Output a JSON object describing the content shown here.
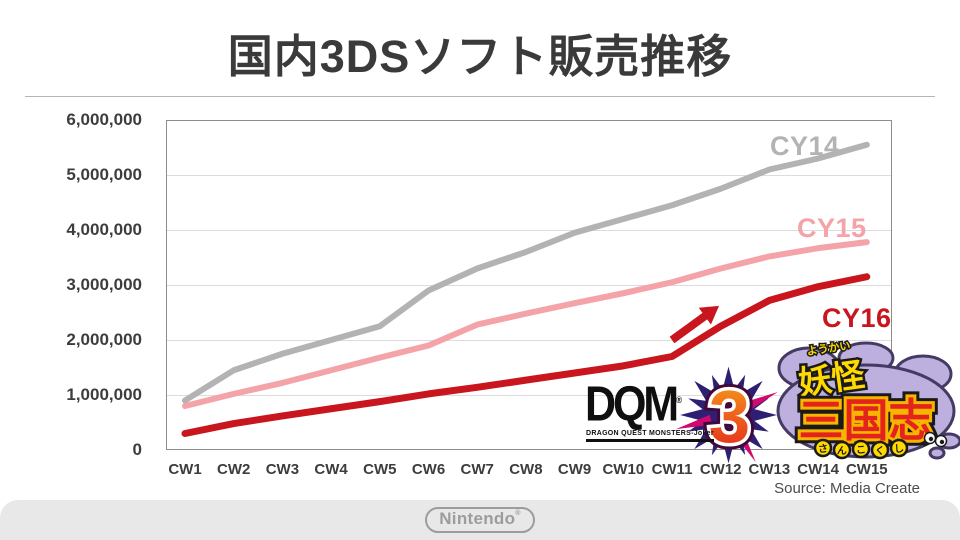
{
  "page": {
    "title": "国内3DSソフト販売推移",
    "source": "Source: Media Create"
  },
  "chart_data": {
    "type": "line",
    "title": "国内3DSソフト販売推移",
    "x_categories": [
      "CW1",
      "CW2",
      "CW3",
      "CW4",
      "CW5",
      "CW6",
      "CW7",
      "CW8",
      "CW9",
      "CW10",
      "CW11",
      "CW12",
      "CW13",
      "CW14",
      "CW15"
    ],
    "ylim": [
      0,
      6000000
    ],
    "grid": "horizontal",
    "legend_position": "inline-right-of-lines",
    "axis_color": "#8c8c8c",
    "grid_color": "#dcdcdc",
    "y_ticks": [
      {
        "value": 6000000,
        "label": "6,000,000"
      },
      {
        "value": 5000000,
        "label": "5,000,000"
      },
      {
        "value": 4000000,
        "label": "4,000,000"
      },
      {
        "value": 3000000,
        "label": "3,000,000"
      },
      {
        "value": 2000000,
        "label": "2,000,000"
      },
      {
        "value": 1000000,
        "label": "1,000,000"
      },
      {
        "value": 0,
        "label": "0"
      }
    ],
    "series": [
      {
        "name": "CY14",
        "color": "#b3b3b3",
        "values": [
          900000,
          1450000,
          1750000,
          2000000,
          2250000,
          2900000,
          3300000,
          3600000,
          3950000,
          4200000,
          4450000,
          4750000,
          5100000,
          5300000,
          5550000
        ]
      },
      {
        "name": "CY15",
        "color": "#f4a3a8",
        "values": [
          800000,
          1020000,
          1220000,
          1450000,
          1680000,
          1900000,
          2280000,
          2480000,
          2670000,
          2850000,
          3050000,
          3300000,
          3520000,
          3670000,
          3780000
        ]
      },
      {
        "name": "CY16",
        "color": "#c9151d",
        "values": [
          300000,
          480000,
          620000,
          750000,
          880000,
          1020000,
          1140000,
          1270000,
          1400000,
          1530000,
          1700000,
          2250000,
          2720000,
          2970000,
          3150000
        ]
      }
    ],
    "annotation_arrow": {
      "color": "#c9151d",
      "from_index": 10.0,
      "from_value": 2000000,
      "to_index": 10.7,
      "to_value": 2450000
    }
  },
  "logos": {
    "dqm": {
      "abbr": "DQM",
      "reg": "®",
      "number": "3",
      "caption": "DRAGON QUEST MONSTERS-Joker"
    },
    "youkai": {
      "furigana": "ようかい",
      "kanji_top": "妖怪",
      "kanji_main": "三国志",
      "kana_bottom": [
        "さ",
        "ん",
        "こ",
        "く",
        "し"
      ]
    }
  },
  "footer": {
    "brand": "Nintendo",
    "reg": "®"
  }
}
